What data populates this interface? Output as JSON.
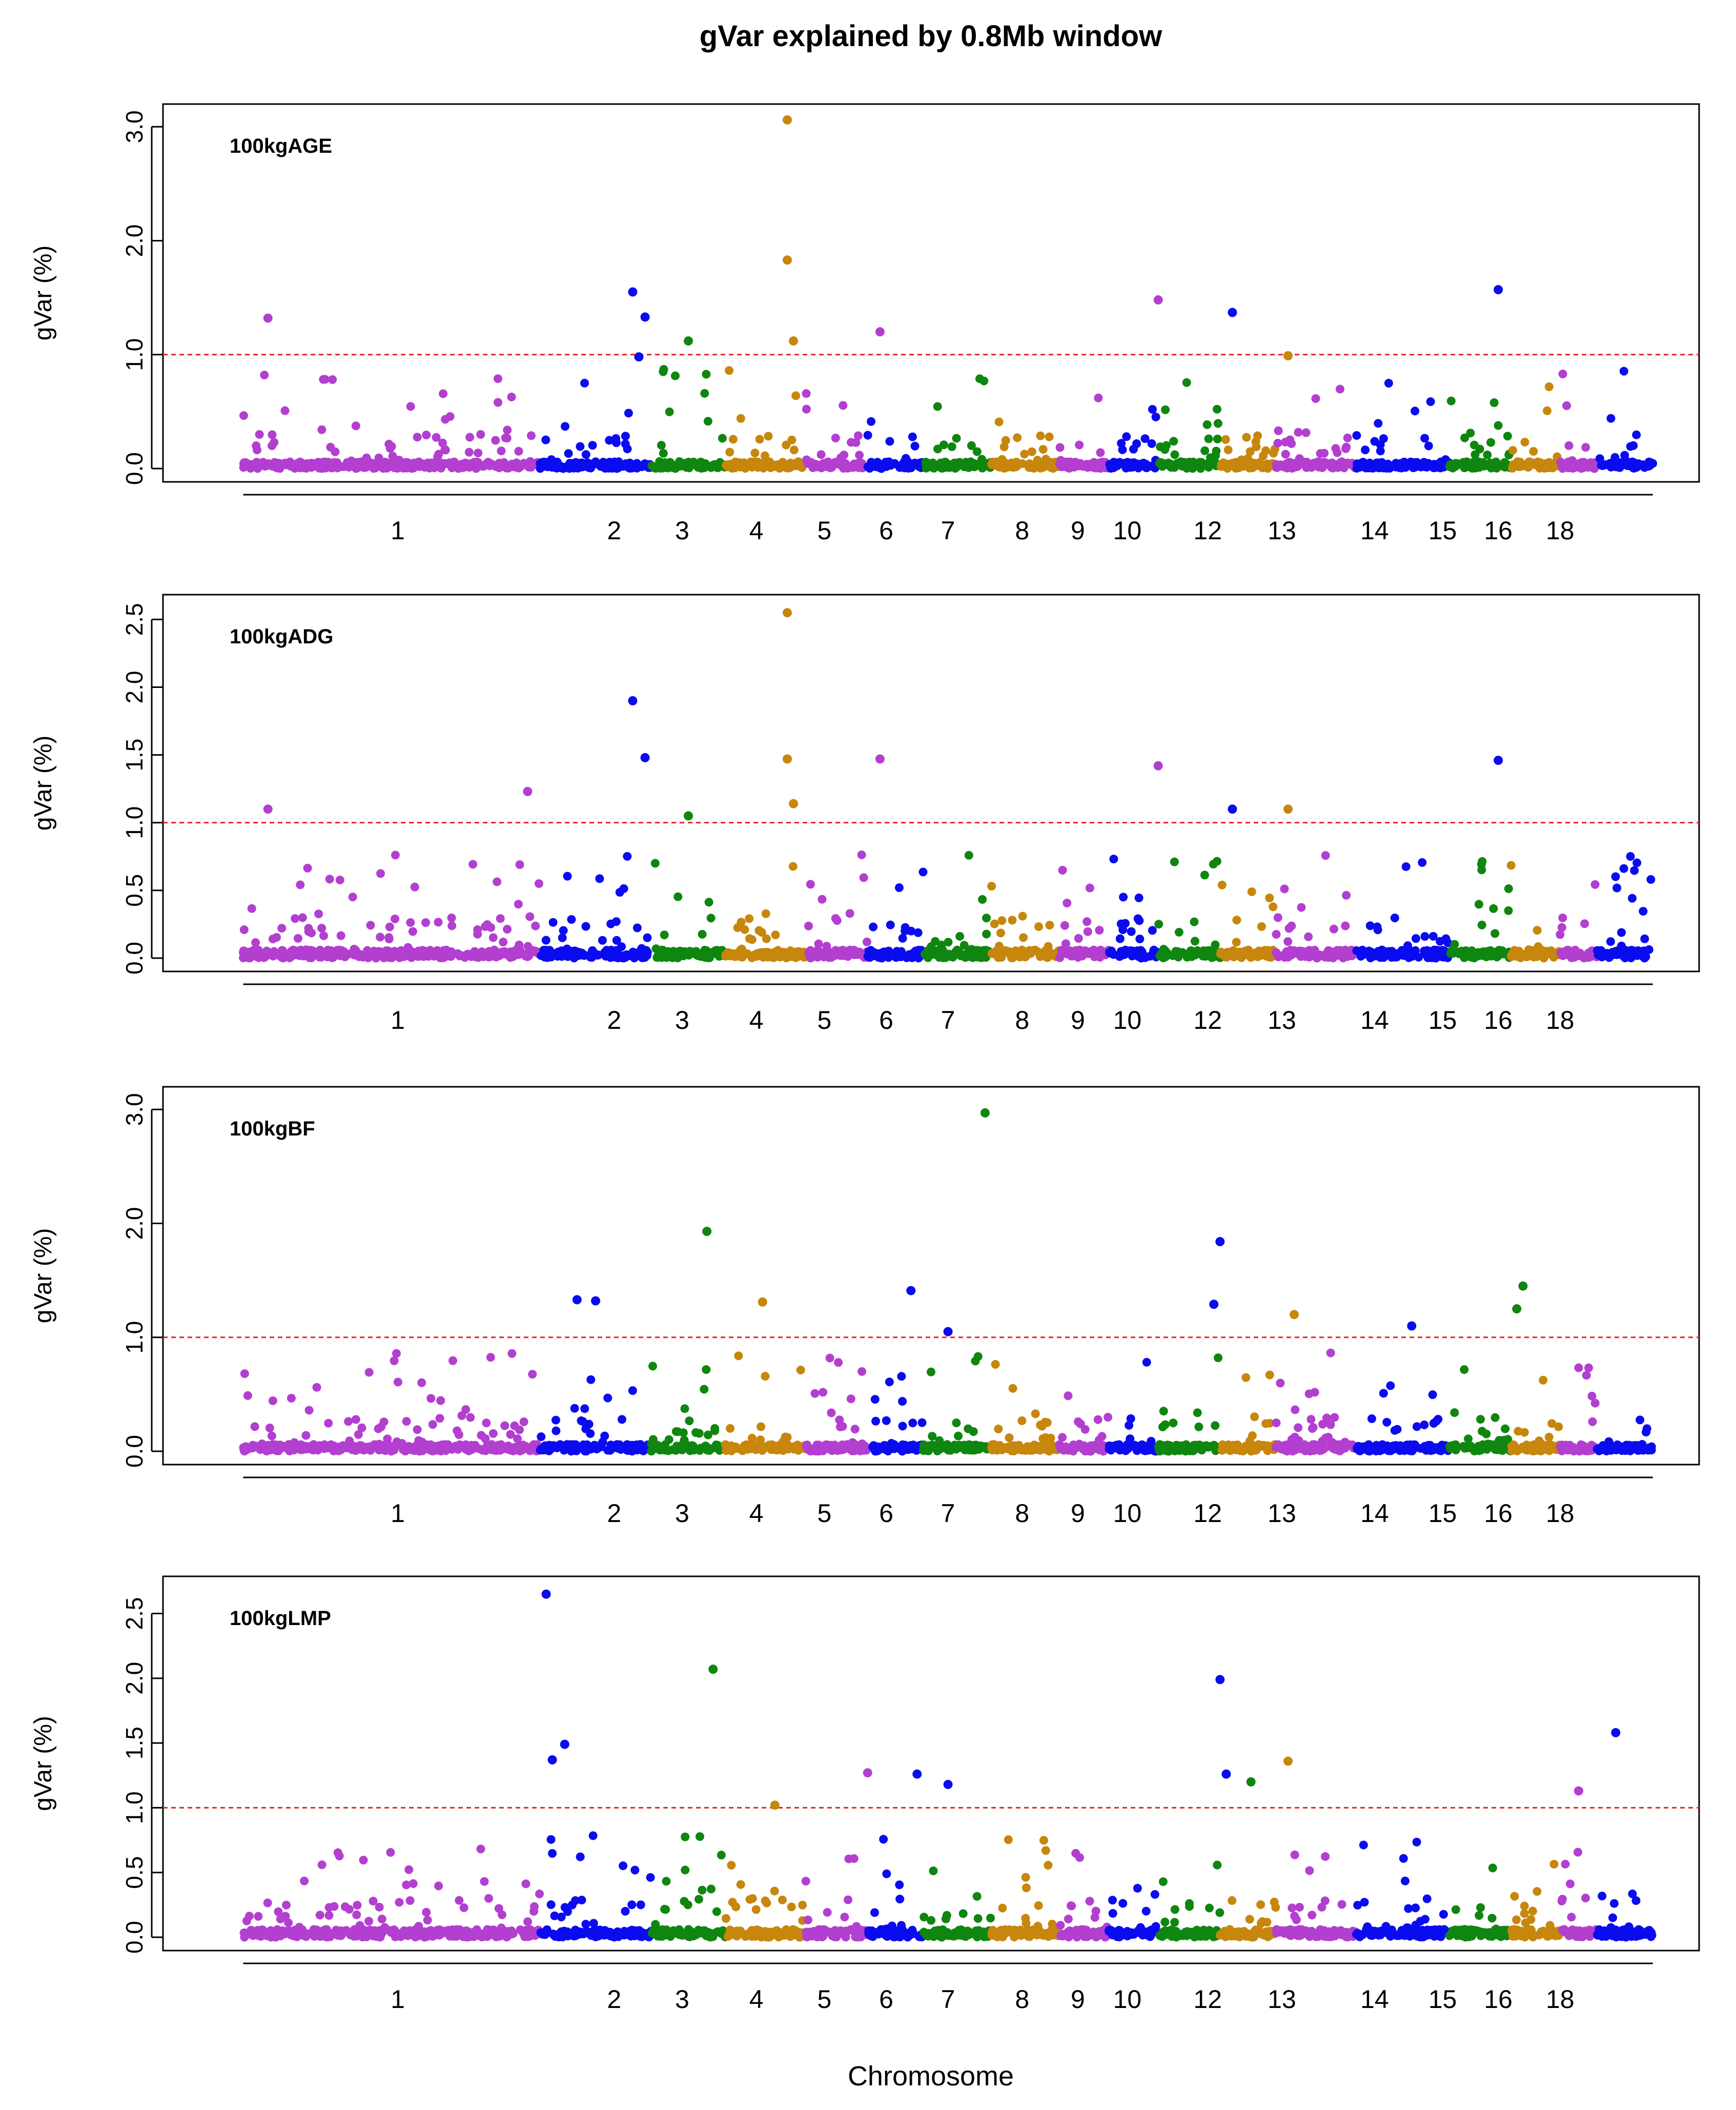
{
  "title": "gVar explained by 0.8Mb window",
  "xlabel": "Chromosome",
  "colors": {
    "purple": "#b23fd0",
    "blue": "#0b0bf0",
    "green": "#0f860f",
    "orange": "#c7860c",
    "threshold": "#e52222"
  },
  "chart_data": [
    {
      "type": "scatter",
      "label": "100kgAGE",
      "ylabel": "gVar (%)",
      "ylim": [
        0,
        3.1
      ],
      "yticks": [
        "0.0",
        "1.0",
        "2.0",
        "3.0"
      ],
      "ytick_values": [
        0,
        1,
        2,
        3
      ],
      "threshold": 1.0,
      "x_tick_labels": [
        "1",
        "2",
        "3",
        "4",
        "5",
        "6",
        "7",
        "8",
        "9",
        "10",
        "12",
        "13",
        "14",
        "15",
        "16",
        "18"
      ],
      "x_tick_positions": [
        2.5,
        6,
        7.1,
        8.3,
        9.4,
        10.4,
        11.4,
        12.6,
        13.5,
        14.3,
        15.6,
        16.8,
        18.3,
        19.4,
        20.3,
        21.3
      ],
      "peaks": [
        {
          "chrom": 1,
          "x": 0.4,
          "y": 1.32
        },
        {
          "chrom": 2,
          "x": 6.3,
          "y": 1.55
        },
        {
          "chrom": 2,
          "x": 6.5,
          "y": 1.33
        },
        {
          "chrom": 2,
          "x": 6.4,
          "y": 0.98
        },
        {
          "chrom": 3,
          "x": 7.2,
          "y": 1.12
        },
        {
          "chrom": 4,
          "x": 8.8,
          "y": 3.06
        },
        {
          "chrom": 4,
          "x": 8.8,
          "y": 1.83
        },
        {
          "chrom": 4,
          "x": 8.9,
          "y": 1.12
        },
        {
          "chrom": 5,
          "x": 10.3,
          "y": 1.2
        },
        {
          "chrom": 9,
          "x": 14.8,
          "y": 1.48
        },
        {
          "chrom": 10,
          "x": 16.0,
          "y": 1.37
        },
        {
          "chrom": 12,
          "x": 16.9,
          "y": 0.99
        },
        {
          "chrom": 14,
          "x": 20.3,
          "y": 1.57
        }
      ]
    },
    {
      "type": "scatter",
      "label": "100kgADG",
      "ylabel": "gVar (%)",
      "ylim": [
        0,
        2.6
      ],
      "yticks": [
        "0.0",
        "0.5",
        "1.0",
        "1.5",
        "2.0",
        "2.5"
      ],
      "ytick_values": [
        0,
        0.5,
        1.0,
        1.5,
        2.0,
        2.5
      ],
      "threshold": 1.0,
      "x_tick_labels": [
        "1",
        "2",
        "3",
        "4",
        "5",
        "6",
        "7",
        "8",
        "9",
        "10",
        "12",
        "13",
        "14",
        "15",
        "16",
        "18"
      ],
      "x_tick_positions": [
        2.5,
        6,
        7.1,
        8.3,
        9.4,
        10.4,
        11.4,
        12.6,
        13.5,
        14.3,
        15.6,
        16.8,
        18.3,
        19.4,
        20.3,
        21.3
      ],
      "peaks": [
        {
          "chrom": 1,
          "x": 0.4,
          "y": 1.1
        },
        {
          "chrom": 1,
          "x": 4.6,
          "y": 1.23
        },
        {
          "chrom": 2,
          "x": 6.3,
          "y": 1.9
        },
        {
          "chrom": 2,
          "x": 6.5,
          "y": 1.48
        },
        {
          "chrom": 3,
          "x": 7.2,
          "y": 1.05
        },
        {
          "chrom": 4,
          "x": 8.8,
          "y": 2.55
        },
        {
          "chrom": 4,
          "x": 8.8,
          "y": 1.47
        },
        {
          "chrom": 4,
          "x": 8.9,
          "y": 1.14
        },
        {
          "chrom": 5,
          "x": 10.3,
          "y": 1.47
        },
        {
          "chrom": 9,
          "x": 14.8,
          "y": 1.42
        },
        {
          "chrom": 10,
          "x": 16.0,
          "y": 1.1
        },
        {
          "chrom": 12,
          "x": 16.9,
          "y": 1.1
        },
        {
          "chrom": 14,
          "x": 20.3,
          "y": 1.46
        }
      ]
    },
    {
      "type": "scatter",
      "label": "100kgBF",
      "ylabel": "gVar (%)",
      "ylim": [
        0,
        3.1
      ],
      "yticks": [
        "0.0",
        "1.0",
        "2.0",
        "3.0"
      ],
      "ytick_values": [
        0,
        1,
        2,
        3
      ],
      "threshold": 1.0,
      "x_tick_labels": [
        "1",
        "2",
        "3",
        "4",
        "5",
        "6",
        "7",
        "8",
        "9",
        "10",
        "12",
        "13",
        "14",
        "15",
        "16",
        "18"
      ],
      "x_tick_positions": [
        2.5,
        6,
        7.1,
        8.3,
        9.4,
        10.4,
        11.4,
        12.6,
        13.5,
        14.3,
        15.6,
        16.8,
        18.3,
        19.4,
        20.3,
        21.3
      ],
      "peaks": [
        {
          "chrom": 2,
          "x": 5.4,
          "y": 1.33
        },
        {
          "chrom": 2,
          "x": 5.7,
          "y": 1.32
        },
        {
          "chrom": 3,
          "x": 7.5,
          "y": 1.93
        },
        {
          "chrom": 4,
          "x": 8.4,
          "y": 1.31
        },
        {
          "chrom": 6,
          "x": 10.8,
          "y": 1.41
        },
        {
          "chrom": 6,
          "x": 11.4,
          "y": 1.05
        },
        {
          "chrom": 7,
          "x": 12.0,
          "y": 2.97
        },
        {
          "chrom": 10,
          "x": 15.8,
          "y": 1.84
        },
        {
          "chrom": 10,
          "x": 15.7,
          "y": 1.29
        },
        {
          "chrom": 12,
          "x": 17.0,
          "y": 1.2
        },
        {
          "chrom": 14,
          "x": 18.9,
          "y": 1.1
        },
        {
          "chrom": 15,
          "x": 20.7,
          "y": 1.45
        },
        {
          "chrom": 15,
          "x": 20.6,
          "y": 1.25
        }
      ]
    },
    {
      "type": "scatter",
      "label": "100kgLMP",
      "ylabel": "gVar (%)",
      "ylim": [
        0,
        2.7
      ],
      "yticks": [
        "0.0",
        "0.5",
        "1.0",
        "1.5",
        "2.0",
        "2.5"
      ],
      "ytick_values": [
        0,
        0.5,
        1.0,
        1.5,
        2.0,
        2.5
      ],
      "threshold": 1.0,
      "x_tick_labels": [
        "1",
        "2",
        "3",
        "4",
        "5",
        "6",
        "7",
        "8",
        "9",
        "10",
        "12",
        "13",
        "14",
        "15",
        "16",
        "18"
      ],
      "x_tick_positions": [
        2.5,
        6,
        7.1,
        8.3,
        9.4,
        10.4,
        11.4,
        12.6,
        13.5,
        14.3,
        15.6,
        16.8,
        18.3,
        19.4,
        20.3,
        21.3
      ],
      "peaks": [
        {
          "chrom": 2,
          "x": 4.9,
          "y": 2.65
        },
        {
          "chrom": 2,
          "x": 5.0,
          "y": 1.37
        },
        {
          "chrom": 2,
          "x": 5.2,
          "y": 1.49
        },
        {
          "chrom": 3,
          "x": 7.6,
          "y": 2.07
        },
        {
          "chrom": 4,
          "x": 8.6,
          "y": 1.02
        },
        {
          "chrom": 5,
          "x": 10.1,
          "y": 1.27
        },
        {
          "chrom": 6,
          "x": 10.9,
          "y": 1.26
        },
        {
          "chrom": 6,
          "x": 11.4,
          "y": 1.18
        },
        {
          "chrom": 10,
          "x": 15.8,
          "y": 1.99
        },
        {
          "chrom": 10,
          "x": 15.9,
          "y": 1.26
        },
        {
          "chrom": 11,
          "x": 16.3,
          "y": 1.2
        },
        {
          "chrom": 12,
          "x": 16.9,
          "y": 1.36
        },
        {
          "chrom": 18,
          "x": 22.2,
          "y": 1.58
        },
        {
          "chrom": 17,
          "x": 21.6,
          "y": 1.13
        }
      ]
    }
  ]
}
